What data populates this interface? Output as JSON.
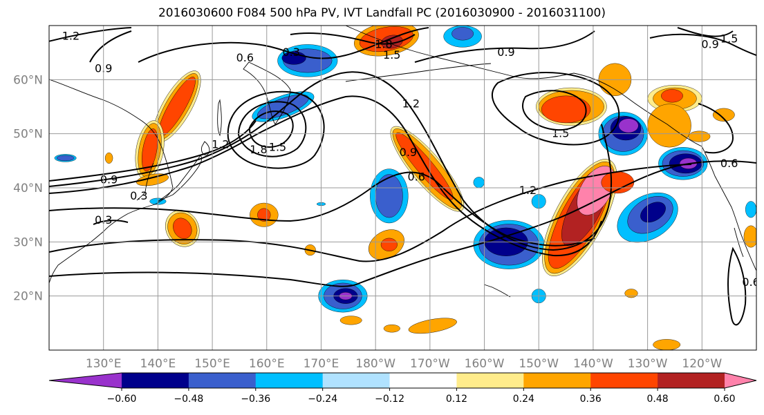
{
  "title": "2016030600 F084 500 hPa PV, IVT Landfall PC (2016030900 - 2016031100)",
  "map": {
    "lon_range": [
      120,
      250
    ],
    "lat_range": [
      10,
      70
    ],
    "lat_ticks": [
      {
        "value": 20,
        "label": "20°N"
      },
      {
        "value": 30,
        "label": "30°N"
      },
      {
        "value": 40,
        "label": "40°N"
      },
      {
        "value": 50,
        "label": "50°N"
      },
      {
        "value": 60,
        "label": "60°N"
      }
    ],
    "lon_ticks": [
      {
        "value": 130,
        "label": "130°E"
      },
      {
        "value": 140,
        "label": "140°E"
      },
      {
        "value": 150,
        "label": "150°E"
      },
      {
        "value": 160,
        "label": "160°E"
      },
      {
        "value": 170,
        "label": "170°E"
      },
      {
        "value": 180,
        "label": "180°W"
      },
      {
        "value": 190,
        "label": "170°W"
      },
      {
        "value": 200,
        "label": "160°W"
      },
      {
        "value": 210,
        "label": "150°W"
      },
      {
        "value": 220,
        "label": "140°W"
      },
      {
        "value": 230,
        "label": "130°W"
      },
      {
        "value": 240,
        "label": "120°W"
      }
    ],
    "grid": true,
    "coastlines": true
  },
  "colorbar": {
    "levels": [
      -0.72,
      -0.6,
      -0.48,
      -0.36,
      -0.24,
      -0.12,
      0.12,
      0.24,
      0.36,
      0.48,
      0.6,
      0.72
    ],
    "colors": [
      "#9932cc",
      "#00008b",
      "#3a5fcd",
      "#00bfff",
      "#b0e2ff",
      "#ffffff",
      "#ffec8b",
      "#ffa500",
      "#ff4500",
      "#b22222",
      "#ff82ab"
    ],
    "tick_values": [
      -0.6,
      -0.48,
      -0.36,
      -0.24,
      -0.12,
      0.12,
      0.24,
      0.36,
      0.48,
      0.6
    ],
    "tick_labels": [
      "−0.60",
      "−0.48",
      "−0.36",
      "−0.24",
      "−0.12",
      "0.12",
      "0.24",
      "0.36",
      "0.48",
      "0.60"
    ],
    "extend": "both"
  },
  "contour_labels": [
    {
      "text": "1.2",
      "lon": 124,
      "lat": 68
    },
    {
      "text": "0.9",
      "lon": 130,
      "lat": 62
    },
    {
      "text": "0.6",
      "lon": 156,
      "lat": 64
    },
    {
      "text": "0.3",
      "lon": 164.5,
      "lat": 65
    },
    {
      "text": "1.8",
      "lon": 181.5,
      "lat": 66.5
    },
    {
      "text": "1.5",
      "lon": 183,
      "lat": 64.5
    },
    {
      "text": "0.9",
      "lon": 204,
      "lat": 65
    },
    {
      "text": "0.9",
      "lon": 241.5,
      "lat": 66.5
    },
    {
      "text": "1.5",
      "lon": 245,
      "lat": 67.5
    },
    {
      "text": "1.2",
      "lon": 186.5,
      "lat": 55.5
    },
    {
      "text": "1.5",
      "lon": 214,
      "lat": 50
    },
    {
      "text": "1.2",
      "lon": 151.5,
      "lat": 48
    },
    {
      "text": "1.8",
      "lon": 158.5,
      "lat": 47
    },
    {
      "text": "1.5",
      "lon": 162,
      "lat": 47.5
    },
    {
      "text": "0.9",
      "lon": 186,
      "lat": 46.5
    },
    {
      "text": "0.6",
      "lon": 187.5,
      "lat": 42
    },
    {
      "text": "0.9",
      "lon": 131,
      "lat": 41.5
    },
    {
      "text": "0.3",
      "lon": 136.5,
      "lat": 38.5
    },
    {
      "text": "0.3",
      "lon": 130,
      "lat": 34
    },
    {
      "text": "1.2",
      "lon": 208,
      "lat": 39.5
    },
    {
      "text": "0.6",
      "lon": 245,
      "lat": 44.5
    },
    {
      "text": "0.6",
      "lon": 249,
      "lat": 22.5
    }
  ],
  "shaded_regions": [
    {
      "level": "0.12",
      "lon": 143.5,
      "lat": 55,
      "rlon": 2.6,
      "rlat": 7.5,
      "angle": 30
    },
    {
      "level": "0.24",
      "lon": 143.5,
      "lat": 55,
      "rlon": 2.1,
      "rlat": 7,
      "angle": 30
    },
    {
      "level": "0.36",
      "lon": 143.5,
      "lat": 55,
      "rlon": 1.5,
      "rlat": 6.3,
      "angle": 30
    },
    {
      "level": "0.12",
      "lon": 138.5,
      "lat": 47,
      "rlon": 2.5,
      "rlat": 5.5,
      "angle": 10
    },
    {
      "level": "0.24",
      "lon": 138.5,
      "lat": 47,
      "rlon": 2,
      "rlat": 5,
      "angle": 10
    },
    {
      "level": "0.36",
      "lon": 138.5,
      "lat": 47,
      "rlon": 1.3,
      "rlat": 4,
      "angle": 10
    },
    {
      "level": "0.24",
      "lon": 139,
      "lat": 41.5,
      "rlon": 3,
      "rlat": 1,
      "angle": -10
    },
    {
      "level": "-0.24",
      "lon": 123,
      "lat": 45.5,
      "rlon": 2,
      "rlat": 0.7,
      "angle": 0
    },
    {
      "level": "-0.36",
      "lon": 123,
      "lat": 45.5,
      "rlon": 1.6,
      "rlat": 0.5,
      "angle": 0
    },
    {
      "level": "0.24",
      "lon": 131,
      "lat": 45.5,
      "rlon": 0.7,
      "rlat": 1,
      "angle": 0
    },
    {
      "level": "0.12",
      "lon": 144.5,
      "lat": 32.5,
      "rlon": 3,
      "rlat": 3.5,
      "angle": -30
    },
    {
      "level": "0.24",
      "lon": 144.5,
      "lat": 32.5,
      "rlon": 2.6,
      "rlat": 3,
      "angle": -30
    },
    {
      "level": "0.36",
      "lon": 144.5,
      "lat": 32.5,
      "rlon": 1.6,
      "rlat": 2,
      "angle": -30
    },
    {
      "level": "0.24",
      "lon": 159.5,
      "lat": 35,
      "rlon": 2.6,
      "rlat": 2.2,
      "angle": 0
    },
    {
      "level": "0.36",
      "lon": 159.5,
      "lat": 35,
      "rlon": 1.2,
      "rlat": 1.2,
      "angle": 0
    },
    {
      "level": "-0.24",
      "lon": 140,
      "lat": 37.5,
      "rlon": 1.5,
      "rlat": 0.6,
      "angle": 0
    },
    {
      "level": "-0.24",
      "lon": 170,
      "lat": 37,
      "rlon": 0.8,
      "rlat": 0.3,
      "angle": 0
    },
    {
      "level": "-0.24",
      "lon": 163,
      "lat": 55,
      "rlon": 6,
      "rlat": 2,
      "angle": -20
    },
    {
      "level": "-0.36",
      "lon": 163,
      "lat": 55,
      "rlon": 5,
      "rlat": 1.5,
      "angle": -20
    },
    {
      "level": "-0.24",
      "lon": 167.5,
      "lat": 63.5,
      "rlon": 5.5,
      "rlat": 3,
      "angle": 0
    },
    {
      "level": "-0.36",
      "lon": 167.5,
      "lat": 63.5,
      "rlon": 4.5,
      "rlat": 2.2,
      "angle": 0
    },
    {
      "level": "-0.48",
      "lon": 165,
      "lat": 64,
      "rlon": 2.2,
      "rlat": 1.2,
      "angle": 0
    },
    {
      "level": "0.24",
      "lon": 182,
      "lat": 67.5,
      "rlon": 6,
      "rlat": 3,
      "angle": -10
    },
    {
      "level": "0.36",
      "lon": 182,
      "lat": 67.5,
      "rlon": 5,
      "rlat": 2.2,
      "angle": -10
    },
    {
      "level": "0.48",
      "lon": 183,
      "lat": 67,
      "rlon": 2,
      "rlat": 1.2,
      "angle": -10
    },
    {
      "level": "-0.24",
      "lon": 196,
      "lat": 68,
      "rlon": 3.5,
      "rlat": 2,
      "angle": 0
    },
    {
      "level": "-0.36",
      "lon": 196,
      "lat": 68.5,
      "rlon": 2,
      "rlat": 1.2,
      "angle": 0
    },
    {
      "level": "0.12",
      "lon": 189.5,
      "lat": 43.5,
      "rlon": 2.8,
      "rlat": 10,
      "angle": -40
    },
    {
      "level": "0.24",
      "lon": 189.5,
      "lat": 43.5,
      "rlon": 2.4,
      "rlat": 9.5,
      "angle": -40
    },
    {
      "level": "0.36",
      "lon": 189,
      "lat": 44,
      "rlon": 1.5,
      "rlat": 8,
      "angle": -40
    },
    {
      "level": "-0.24",
      "lon": 182.5,
      "lat": 38.5,
      "rlon": 3.5,
      "rlat": 5,
      "angle": 0
    },
    {
      "level": "-0.36",
      "lon": 182.5,
      "lat": 38.5,
      "rlon": 2.5,
      "rlat": 4,
      "angle": 0
    },
    {
      "level": "-0.24",
      "lon": 199,
      "lat": 41,
      "rlon": 1,
      "rlat": 1,
      "angle": 0
    },
    {
      "level": "0.24",
      "lon": 182,
      "lat": 29.5,
      "rlon": 3.5,
      "rlat": 2.5,
      "angle": -30
    },
    {
      "level": "0.36",
      "lon": 182.5,
      "lat": 29.5,
      "rlon": 1.5,
      "rlat": 1.2,
      "angle": 0
    },
    {
      "level": "0.24",
      "lon": 168,
      "lat": 28.5,
      "rlon": 1,
      "rlat": 1,
      "angle": 0
    },
    {
      "level": "-0.24",
      "lon": 174,
      "lat": 20,
      "rlon": 4.5,
      "rlat": 3,
      "angle": 0
    },
    {
      "level": "-0.36",
      "lon": 174,
      "lat": 20,
      "rlon": 3.5,
      "rlat": 2.4,
      "angle": 0
    },
    {
      "level": "-0.48",
      "lon": 174.5,
      "lat": 20,
      "rlon": 2.2,
      "rlat": 1.4,
      "angle": 0
    },
    {
      "level": "-0.60",
      "lon": 174.5,
      "lat": 20,
      "rlon": 1.2,
      "rlat": 0.7,
      "angle": 0
    },
    {
      "level": "0.24",
      "lon": 183,
      "lat": 14,
      "rlon": 1.5,
      "rlat": 0.7,
      "angle": 0
    },
    {
      "level": "0.24",
      "lon": 190.5,
      "lat": 14.5,
      "rlon": 4.5,
      "rlat": 1.2,
      "angle": -10
    },
    {
      "level": "0.24",
      "lon": 175.5,
      "lat": 15.5,
      "rlon": 2,
      "rlat": 0.8,
      "angle": 0
    },
    {
      "level": "-0.24",
      "lon": 204.5,
      "lat": 29.5,
      "rlon": 6.5,
      "rlat": 4.5,
      "angle": 0
    },
    {
      "level": "-0.36",
      "lon": 204.5,
      "lat": 29.5,
      "rlon": 5.5,
      "rlat": 3.8,
      "angle": 0
    },
    {
      "level": "-0.48",
      "lon": 204,
      "lat": 30,
      "rlon": 4,
      "rlat": 2.6,
      "angle": 0
    },
    {
      "level": "-0.24",
      "lon": 210,
      "lat": 20,
      "rlon": 1.3,
      "rlat": 1.3,
      "angle": 0
    },
    {
      "level": "-0.24",
      "lon": 210,
      "lat": 37.5,
      "rlon": 1.3,
      "rlat": 1.3,
      "angle": 0
    },
    {
      "level": "0.12",
      "lon": 217.5,
      "lat": 34.5,
      "rlon": 4.5,
      "rlat": 12,
      "angle": 28
    },
    {
      "level": "0.24",
      "lon": 217.5,
      "lat": 34.5,
      "rlon": 4,
      "rlat": 11.5,
      "angle": 28
    },
    {
      "level": "0.36",
      "lon": 217.5,
      "lat": 34.5,
      "rlon": 3.4,
      "rlat": 10.5,
      "angle": 28
    },
    {
      "level": "0.48",
      "lon": 218.5,
      "lat": 36,
      "rlon": 2.8,
      "rlat": 7.5,
      "angle": 28
    },
    {
      "level": "0.60",
      "lon": 220.5,
      "lat": 39.5,
      "rlon": 2.8,
      "rlat": 5,
      "angle": 30
    },
    {
      "level": "0.36",
      "lon": 224.5,
      "lat": 41,
      "rlon": 3,
      "rlat": 2,
      "angle": 0
    },
    {
      "level": "0.12",
      "lon": 216,
      "lat": 55,
      "rlon": 6.5,
      "rlat": 3.5,
      "angle": 0
    },
    {
      "level": "0.24",
      "lon": 216,
      "lat": 55,
      "rlon": 6,
      "rlat": 3,
      "angle": 0
    },
    {
      "level": "0.36",
      "lon": 215,
      "lat": 54.5,
      "rlon": 4.5,
      "rlat": 2.5,
      "angle": 0
    },
    {
      "level": "0.24",
      "lon": 224,
      "lat": 60,
      "rlon": 3,
      "rlat": 3,
      "angle": 0
    },
    {
      "level": "0.12",
      "lon": 235,
      "lat": 56.5,
      "rlon": 5,
      "rlat": 2.5,
      "angle": 0
    },
    {
      "level": "0.24",
      "lon": 235,
      "lat": 56.5,
      "rlon": 4,
      "rlat": 2,
      "angle": 0
    },
    {
      "level": "0.36",
      "lon": 234.5,
      "lat": 57,
      "rlon": 2,
      "rlat": 1.2,
      "angle": 0
    },
    {
      "level": "0.24",
      "lon": 234,
      "lat": 51.5,
      "rlon": 4,
      "rlat": 4,
      "angle": 0
    },
    {
      "level": "0.24",
      "lon": 244,
      "lat": 53.5,
      "rlon": 2,
      "rlat": 1.2,
      "angle": 0
    },
    {
      "level": "0.24",
      "lon": 239.5,
      "lat": 49.5,
      "rlon": 2,
      "rlat": 1,
      "angle": 0
    },
    {
      "level": "-0.24",
      "lon": 225.5,
      "lat": 50,
      "rlon": 4.5,
      "rlat": 4,
      "angle": 0
    },
    {
      "level": "-0.36",
      "lon": 225.5,
      "lat": 50,
      "rlon": 3.8,
      "rlat": 3.3,
      "angle": 0
    },
    {
      "level": "-0.48",
      "lon": 226,
      "lat": 51,
      "rlon": 2.8,
      "rlat": 2.2,
      "angle": 0
    },
    {
      "level": "-0.60",
      "lon": 226.5,
      "lat": 51.5,
      "rlon": 1.8,
      "rlat": 1.3,
      "angle": 0
    },
    {
      "level": "-0.24",
      "lon": 236.5,
      "lat": 44.5,
      "rlon": 4.5,
      "rlat": 3,
      "angle": 0
    },
    {
      "level": "-0.36",
      "lon": 236.5,
      "lat": 44.5,
      "rlon": 3.8,
      "rlat": 2.4,
      "angle": 0
    },
    {
      "level": "-0.48",
      "lon": 237,
      "lat": 44.5,
      "rlon": 3,
      "rlat": 1.8,
      "angle": 0
    },
    {
      "level": "-0.60",
      "lon": 237.5,
      "lat": 44.5,
      "rlon": 1.6,
      "rlat": 1,
      "angle": 0
    },
    {
      "level": "-0.24",
      "lon": 230,
      "lat": 34.5,
      "rlon": 6,
      "rlat": 4,
      "angle": -30
    },
    {
      "level": "-0.36",
      "lon": 230.5,
      "lat": 35,
      "rlon": 4.5,
      "rlat": 3,
      "angle": -30
    },
    {
      "level": "-0.48",
      "lon": 231,
      "lat": 35.5,
      "rlon": 2.5,
      "rlat": 1.6,
      "angle": -30
    },
    {
      "level": "0.24",
      "lon": 227,
      "lat": 20.5,
      "rlon": 1.2,
      "rlat": 0.8,
      "angle": 0
    },
    {
      "level": "0.24",
      "lon": 233.5,
      "lat": 11,
      "rlon": 2.5,
      "rlat": 1,
      "angle": 0
    },
    {
      "level": "0.24",
      "lon": 249,
      "lat": 31,
      "rlon": 1.3,
      "rlat": 2,
      "angle": 0
    },
    {
      "level": "-0.24",
      "lon": 249,
      "lat": 36,
      "rlon": 1,
      "rlat": 1.5,
      "angle": 0
    }
  ]
}
